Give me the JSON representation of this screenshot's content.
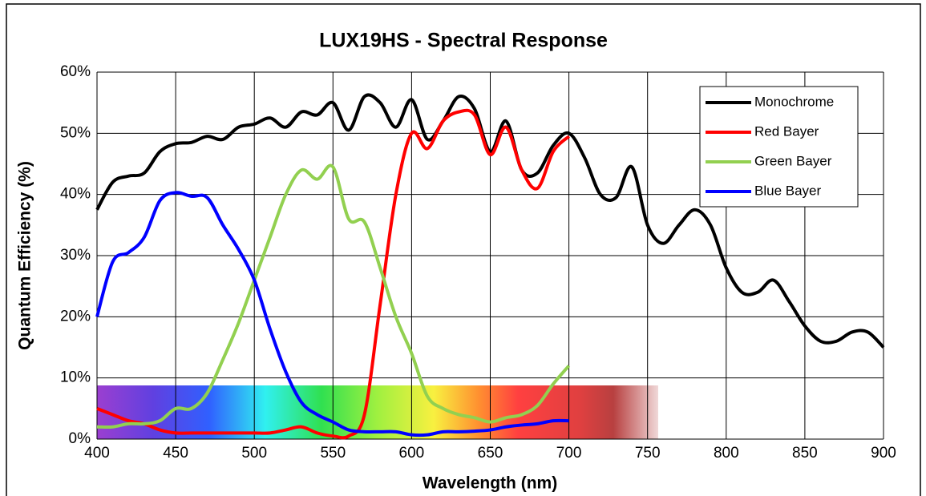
{
  "chart_data": {
    "type": "line",
    "title": "LUX19HS - Spectral Response",
    "x_label": "Wavelength (nm)",
    "y_label": "Quantum Efficiency (%)",
    "xlim": [
      400,
      900
    ],
    "xticks": [
      400,
      450,
      500,
      550,
      600,
      650,
      700,
      750,
      800,
      850,
      900
    ],
    "ylim": [
      0,
      60
    ],
    "yticks": [
      {
        "value": 0,
        "label": "0%"
      },
      {
        "value": 10,
        "label": "10%"
      },
      {
        "value": 20,
        "label": "20%"
      },
      {
        "value": 30,
        "label": "30%"
      },
      {
        "value": 40,
        "label": "40%"
      },
      {
        "value": 50,
        "label": "50%"
      },
      {
        "value": 60,
        "label": "60%"
      }
    ],
    "grid": true,
    "legend": "upper right",
    "series": [
      {
        "name": "Monochrome",
        "color": "#000000",
        "x": [
          400,
          410,
          420,
          430,
          440,
          450,
          460,
          470,
          480,
          490,
          500,
          510,
          520,
          530,
          540,
          550,
          560,
          570,
          580,
          590,
          600,
          610,
          620,
          630,
          640,
          650,
          660,
          670,
          680,
          690,
          700,
          710,
          720,
          730,
          740,
          750,
          760,
          770,
          780,
          790,
          800,
          810,
          820,
          830,
          840,
          850,
          860,
          870,
          880,
          890,
          900
        ],
        "values": [
          37.5,
          42,
          43,
          43.5,
          47,
          48.3,
          48.5,
          49.5,
          49,
          51,
          51.5,
          52.5,
          51,
          53.5,
          53,
          55,
          50.5,
          56,
          55,
          51,
          55.5,
          49,
          52,
          56,
          54,
          47,
          52,
          44,
          43.5,
          48,
          50,
          46,
          40,
          39.5,
          44.5,
          35,
          32,
          35,
          37.5,
          35,
          28,
          24,
          24,
          26,
          22.5,
          18.5,
          16,
          16,
          17.5,
          17.5,
          15
        ]
      },
      {
        "name": "Red Bayer",
        "color": "#ff0000",
        "x": [
          400,
          410,
          420,
          430,
          440,
          450,
          460,
          470,
          480,
          490,
          500,
          510,
          520,
          530,
          540,
          550,
          560,
          570,
          580,
          590,
          600,
          610,
          620,
          630,
          640,
          650,
          660,
          670,
          680,
          690,
          700
        ],
        "values": [
          5,
          4,
          3,
          2.5,
          1.5,
          1,
          1,
          1,
          1,
          1,
          1,
          1,
          1.5,
          2,
          1,
          0.5,
          0.5,
          4,
          22,
          40,
          50,
          47.5,
          52,
          53.5,
          53,
          46.5,
          51,
          44,
          41,
          47,
          49.5
        ]
      },
      {
        "name": "Green Bayer",
        "color": "#92d050",
        "x": [
          400,
          410,
          420,
          430,
          440,
          450,
          460,
          470,
          480,
          490,
          500,
          510,
          520,
          530,
          540,
          550,
          560,
          570,
          580,
          590,
          600,
          610,
          620,
          630,
          640,
          650,
          660,
          670,
          680,
          690,
          700
        ],
        "values": [
          2,
          2,
          2.5,
          2.5,
          3,
          5,
          5,
          7.5,
          13,
          19,
          26,
          33,
          40,
          44,
          42.5,
          44.5,
          36,
          35.5,
          28,
          20,
          14,
          7,
          5,
          4,
          3.5,
          2.8,
          3.5,
          4,
          5.5,
          9,
          12
        ]
      },
      {
        "name": "Blue Bayer",
        "color": "#0000ff",
        "x": [
          400,
          410,
          420,
          430,
          440,
          450,
          460,
          470,
          480,
          490,
          500,
          510,
          520,
          530,
          540,
          550,
          560,
          570,
          580,
          590,
          600,
          610,
          620,
          630,
          640,
          650,
          660,
          670,
          680,
          690,
          700
        ],
        "values": [
          20,
          29,
          30.5,
          33,
          39,
          40.3,
          39.7,
          39.5,
          35,
          31,
          26,
          18,
          11,
          6,
          4,
          2.8,
          1.5,
          1.2,
          1.2,
          1.2,
          0.7,
          0.7,
          1.2,
          1.2,
          1.3,
          1.5,
          2,
          2.3,
          2.5,
          3,
          3
        ]
      }
    ]
  }
}
